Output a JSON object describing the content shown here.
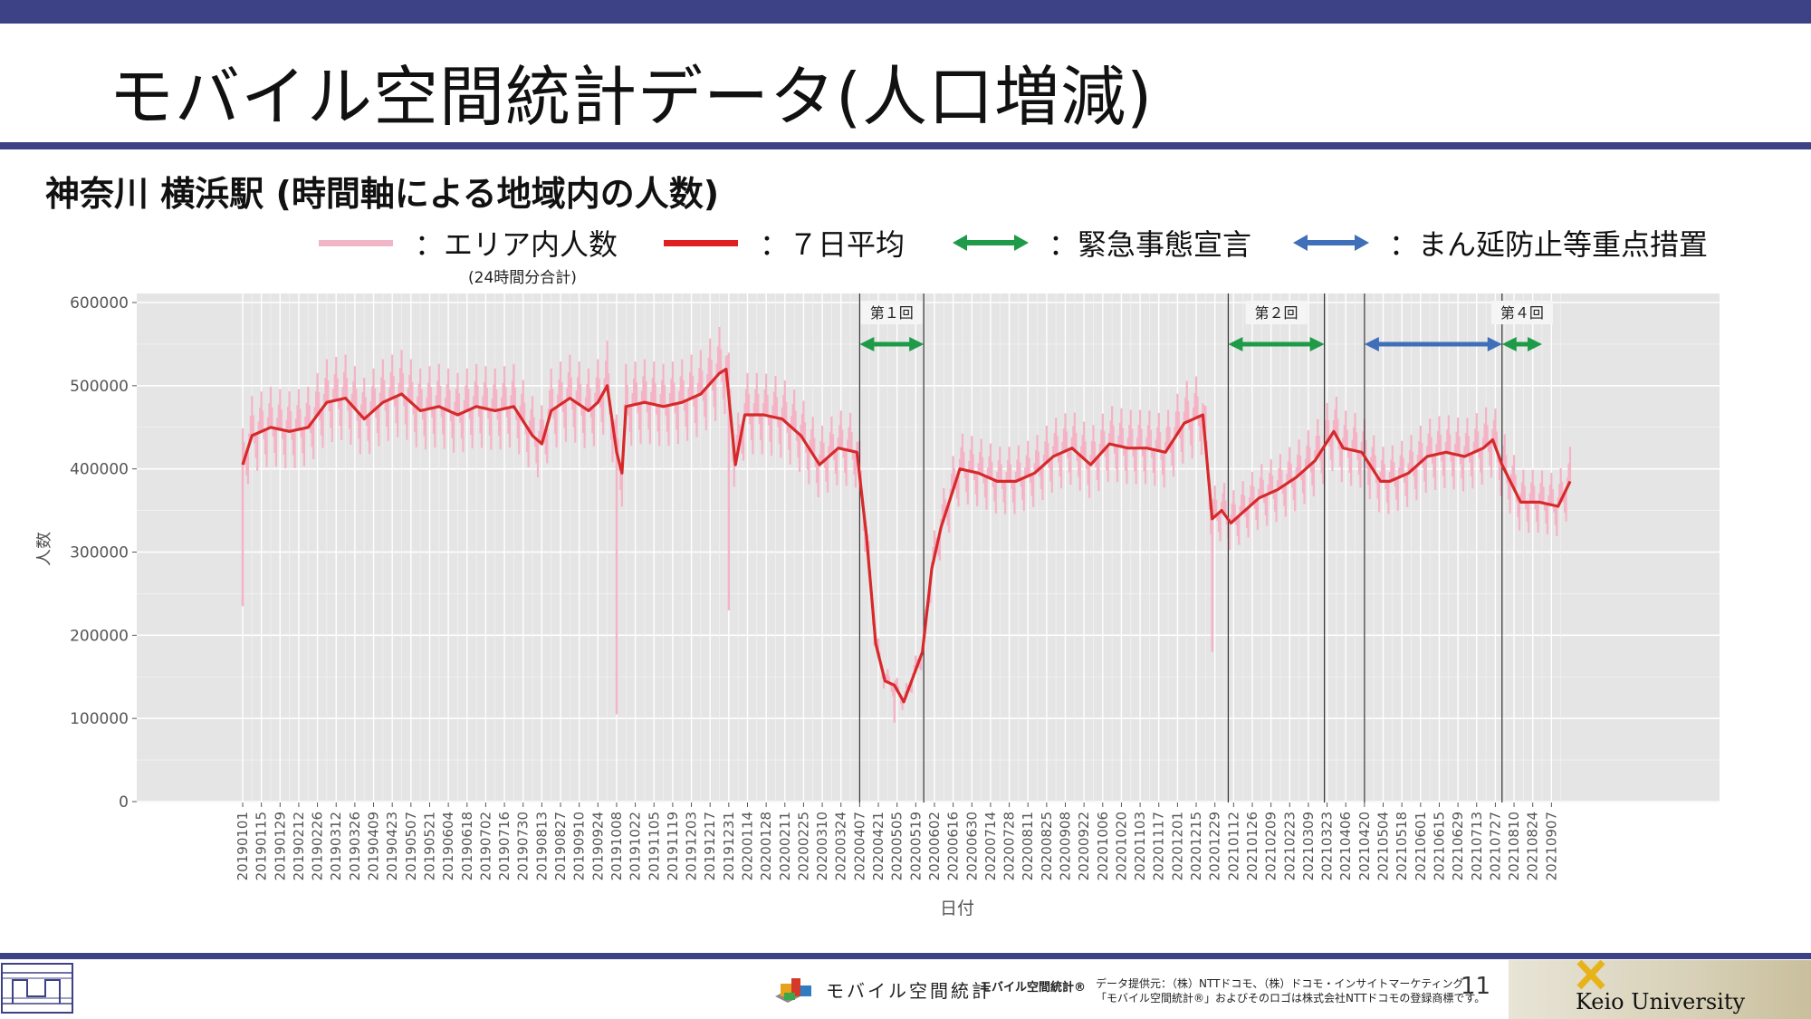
{
  "slide": {
    "title": "モバイル空間統計データ(人口増減)",
    "subtitle": "神奈川 横浜駅 (時間軸による地域内の人数)",
    "page_number": "11"
  },
  "legend": {
    "items": [
      {
        "label": "：エリア内人数",
        "color": "#f0b6c8"
      },
      {
        "label": "：７日平均",
        "color": "#e02020"
      },
      {
        "label": "：緊急事態宣言",
        "color": "#1f9a48"
      },
      {
        "label": "：まん延防止等重点措置",
        "color": "#3e6fb8"
      }
    ],
    "note": "(24時間分合計)"
  },
  "footer": {
    "brand_text": "モバイル空間統計",
    "brand_mark": "モバイル空間統計®",
    "credit_line1": "データ提供元：（株）NTTドコモ、（株）ドコモ・インサイトマーケティング",
    "credit_line2": "「モバイル空間統計®」およびそのロゴは株式会社NTTドコモの登録商標です。",
    "university": "Keio University"
  },
  "chart_data": {
    "type": "line",
    "title": "",
    "xlabel": "日付",
    "ylabel": "人数",
    "ylim": [
      0,
      600000
    ],
    "yticks": [
      0,
      100000,
      200000,
      300000,
      400000,
      500000,
      600000
    ],
    "ytick_labels": [
      "0",
      "100000",
      "200000",
      "300000",
      "400000",
      "500000",
      "600000"
    ],
    "xlim": [
      "20190101",
      "20210921"
    ],
    "xtick_labels": [
      "20190101",
      "20190115",
      "20190129",
      "20190212",
      "20190226",
      "20190312",
      "20190326",
      "20190409",
      "20190423",
      "20190507",
      "20190521",
      "20190604",
      "20190618",
      "20190702",
      "20190716",
      "20190730",
      "20190813",
      "20190827",
      "20190910",
      "20190924",
      "20191008",
      "20191022",
      "20191105",
      "20191119",
      "20191203",
      "20191217",
      "20191231",
      "20200114",
      "20200128",
      "20200211",
      "20200225",
      "20200310",
      "20200324",
      "20200407",
      "20200421",
      "20200505",
      "20200519",
      "20200602",
      "20200616",
      "20200630",
      "20200714",
      "20200728",
      "20200811",
      "20200825",
      "20200908",
      "20200922",
      "20201006",
      "20201020",
      "20201103",
      "20201117",
      "20201201",
      "20201215",
      "20201229",
      "20210112",
      "20210126",
      "20210209",
      "20210223",
      "20210309",
      "20210323",
      "20210406",
      "20210420",
      "20210504",
      "20210518",
      "20210601",
      "20210615",
      "20210629",
      "20210713",
      "20210727",
      "20210810",
      "20210824",
      "20210907"
    ],
    "grid": true,
    "series": [
      {
        "name": "７日平均",
        "x": [
          "20190101",
          "20190108",
          "20190122",
          "20190205",
          "20190219",
          "20190305",
          "20190319",
          "20190402",
          "20190416",
          "20190430",
          "20190514",
          "20190528",
          "20190611",
          "20190625",
          "20190709",
          "20190723",
          "20190806",
          "20190813",
          "20190820",
          "20190903",
          "20190917",
          "20190924",
          "20191001",
          "20191008",
          "20191012",
          "20191015",
          "20191029",
          "20191112",
          "20191126",
          "20191210",
          "20191224",
          "20191229",
          "20200105",
          "20200112",
          "20200126",
          "20200209",
          "20200223",
          "20200308",
          "20200322",
          "20200405",
          "20200412",
          "20200419",
          "20200426",
          "20200503",
          "20200510",
          "20200517",
          "20200524",
          "20200531",
          "20200607",
          "20200614",
          "20200621",
          "20200705",
          "20200719",
          "20200802",
          "20200816",
          "20200830",
          "20200913",
          "20200927",
          "20201011",
          "20201025",
          "20201108",
          "20201122",
          "20201206",
          "20201220",
          "20201227",
          "20210103",
          "20210110",
          "20210117",
          "20210131",
          "20210214",
          "20210228",
          "20210314",
          "20210328",
          "20210404",
          "20210418",
          "20210502",
          "20210509",
          "20210523",
          "20210606",
          "20210620",
          "20210704",
          "20210718",
          "20210725",
          "20210801",
          "20210815",
          "20210829",
          "20210912",
          "20210921"
        ],
        "values": [
          405000,
          440000,
          450000,
          445000,
          450000,
          480000,
          485000,
          460000,
          480000,
          490000,
          470000,
          475000,
          465000,
          475000,
          470000,
          475000,
          440000,
          430000,
          470000,
          485000,
          470000,
          480000,
          500000,
          420000,
          395000,
          475000,
          480000,
          475000,
          480000,
          490000,
          515000,
          520000,
          405000,
          465000,
          465000,
          460000,
          440000,
          405000,
          425000,
          420000,
          320000,
          190000,
          145000,
          140000,
          120000,
          150000,
          180000,
          280000,
          330000,
          365000,
          400000,
          395000,
          385000,
          385000,
          395000,
          415000,
          425000,
          405000,
          430000,
          425000,
          425000,
          420000,
          455000,
          465000,
          340000,
          350000,
          335000,
          345000,
          365000,
          375000,
          390000,
          410000,
          445000,
          425000,
          420000,
          385000,
          385000,
          395000,
          415000,
          420000,
          415000,
          425000,
          435000,
          405000,
          360000,
          360000,
          355000,
          385000
        ]
      },
      {
        "name": "エリア内人数",
        "x": [
          "20190101",
          "20191008",
          "20191231",
          "20200503",
          "20201227"
        ],
        "values": [
          235000,
          105000,
          230000,
          95000,
          180000
        ]
      }
    ],
    "annotations": {
      "emergency_declarations": [
        {
          "label": "第１回",
          "start": "20200407",
          "end": "20200525"
        },
        {
          "label": "第２回",
          "start": "20210108",
          "end": "20210321"
        },
        {
          "label": "第４回",
          "start": "20210801",
          "end": "20210831"
        }
      ],
      "priority_measures": [
        {
          "label": "",
          "start": "20210420",
          "end": "20210801"
        }
      ],
      "vertical_lines": [
        "20200407",
        "20200525",
        "20210108",
        "20210321",
        "20210420",
        "20210801"
      ]
    }
  }
}
